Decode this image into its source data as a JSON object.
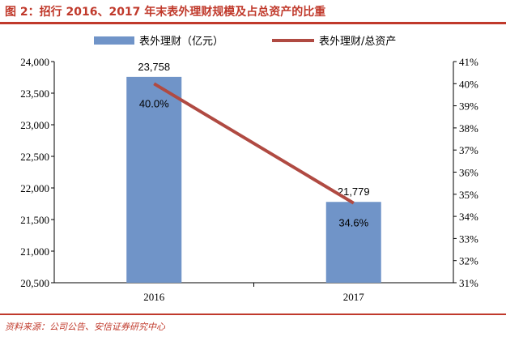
{
  "figure": {
    "title": "图 2：招行 2016、2017 年末表外理财规模及占总资产的比重",
    "source": "资料来源：公司公告、安信证券研究中心"
  },
  "chart_data": {
    "type": "bar+line",
    "categories": [
      "2016",
      "2017"
    ],
    "series": [
      {
        "name": "表外理财（亿元）",
        "type": "bar",
        "axis": "left",
        "color": "#7094c8",
        "values": [
          23758,
          21779
        ],
        "labels": [
          "23,758",
          "21,779"
        ]
      },
      {
        "name": "表外理财/总资产",
        "type": "line",
        "axis": "right",
        "color": "#b04a42",
        "values": [
          40.0,
          34.6
        ],
        "labels": [
          "40.0%",
          "34.6%"
        ]
      }
    ],
    "y_left": {
      "min": 20500,
      "max": 24000,
      "ticks": [
        "20,500",
        "21,000",
        "21,500",
        "22,000",
        "22,500",
        "23,000",
        "23,500",
        "24,000"
      ],
      "tick_values": [
        20500,
        21000,
        21500,
        22000,
        22500,
        23000,
        23500,
        24000
      ]
    },
    "y_right": {
      "min": 31,
      "max": 41,
      "ticks": [
        "31%",
        "32%",
        "33%",
        "34%",
        "35%",
        "36%",
        "37%",
        "38%",
        "39%",
        "40%",
        "41%"
      ],
      "tick_values": [
        31,
        32,
        33,
        34,
        35,
        36,
        37,
        38,
        39,
        40,
        41
      ]
    },
    "legend": "top",
    "grid": false
  }
}
